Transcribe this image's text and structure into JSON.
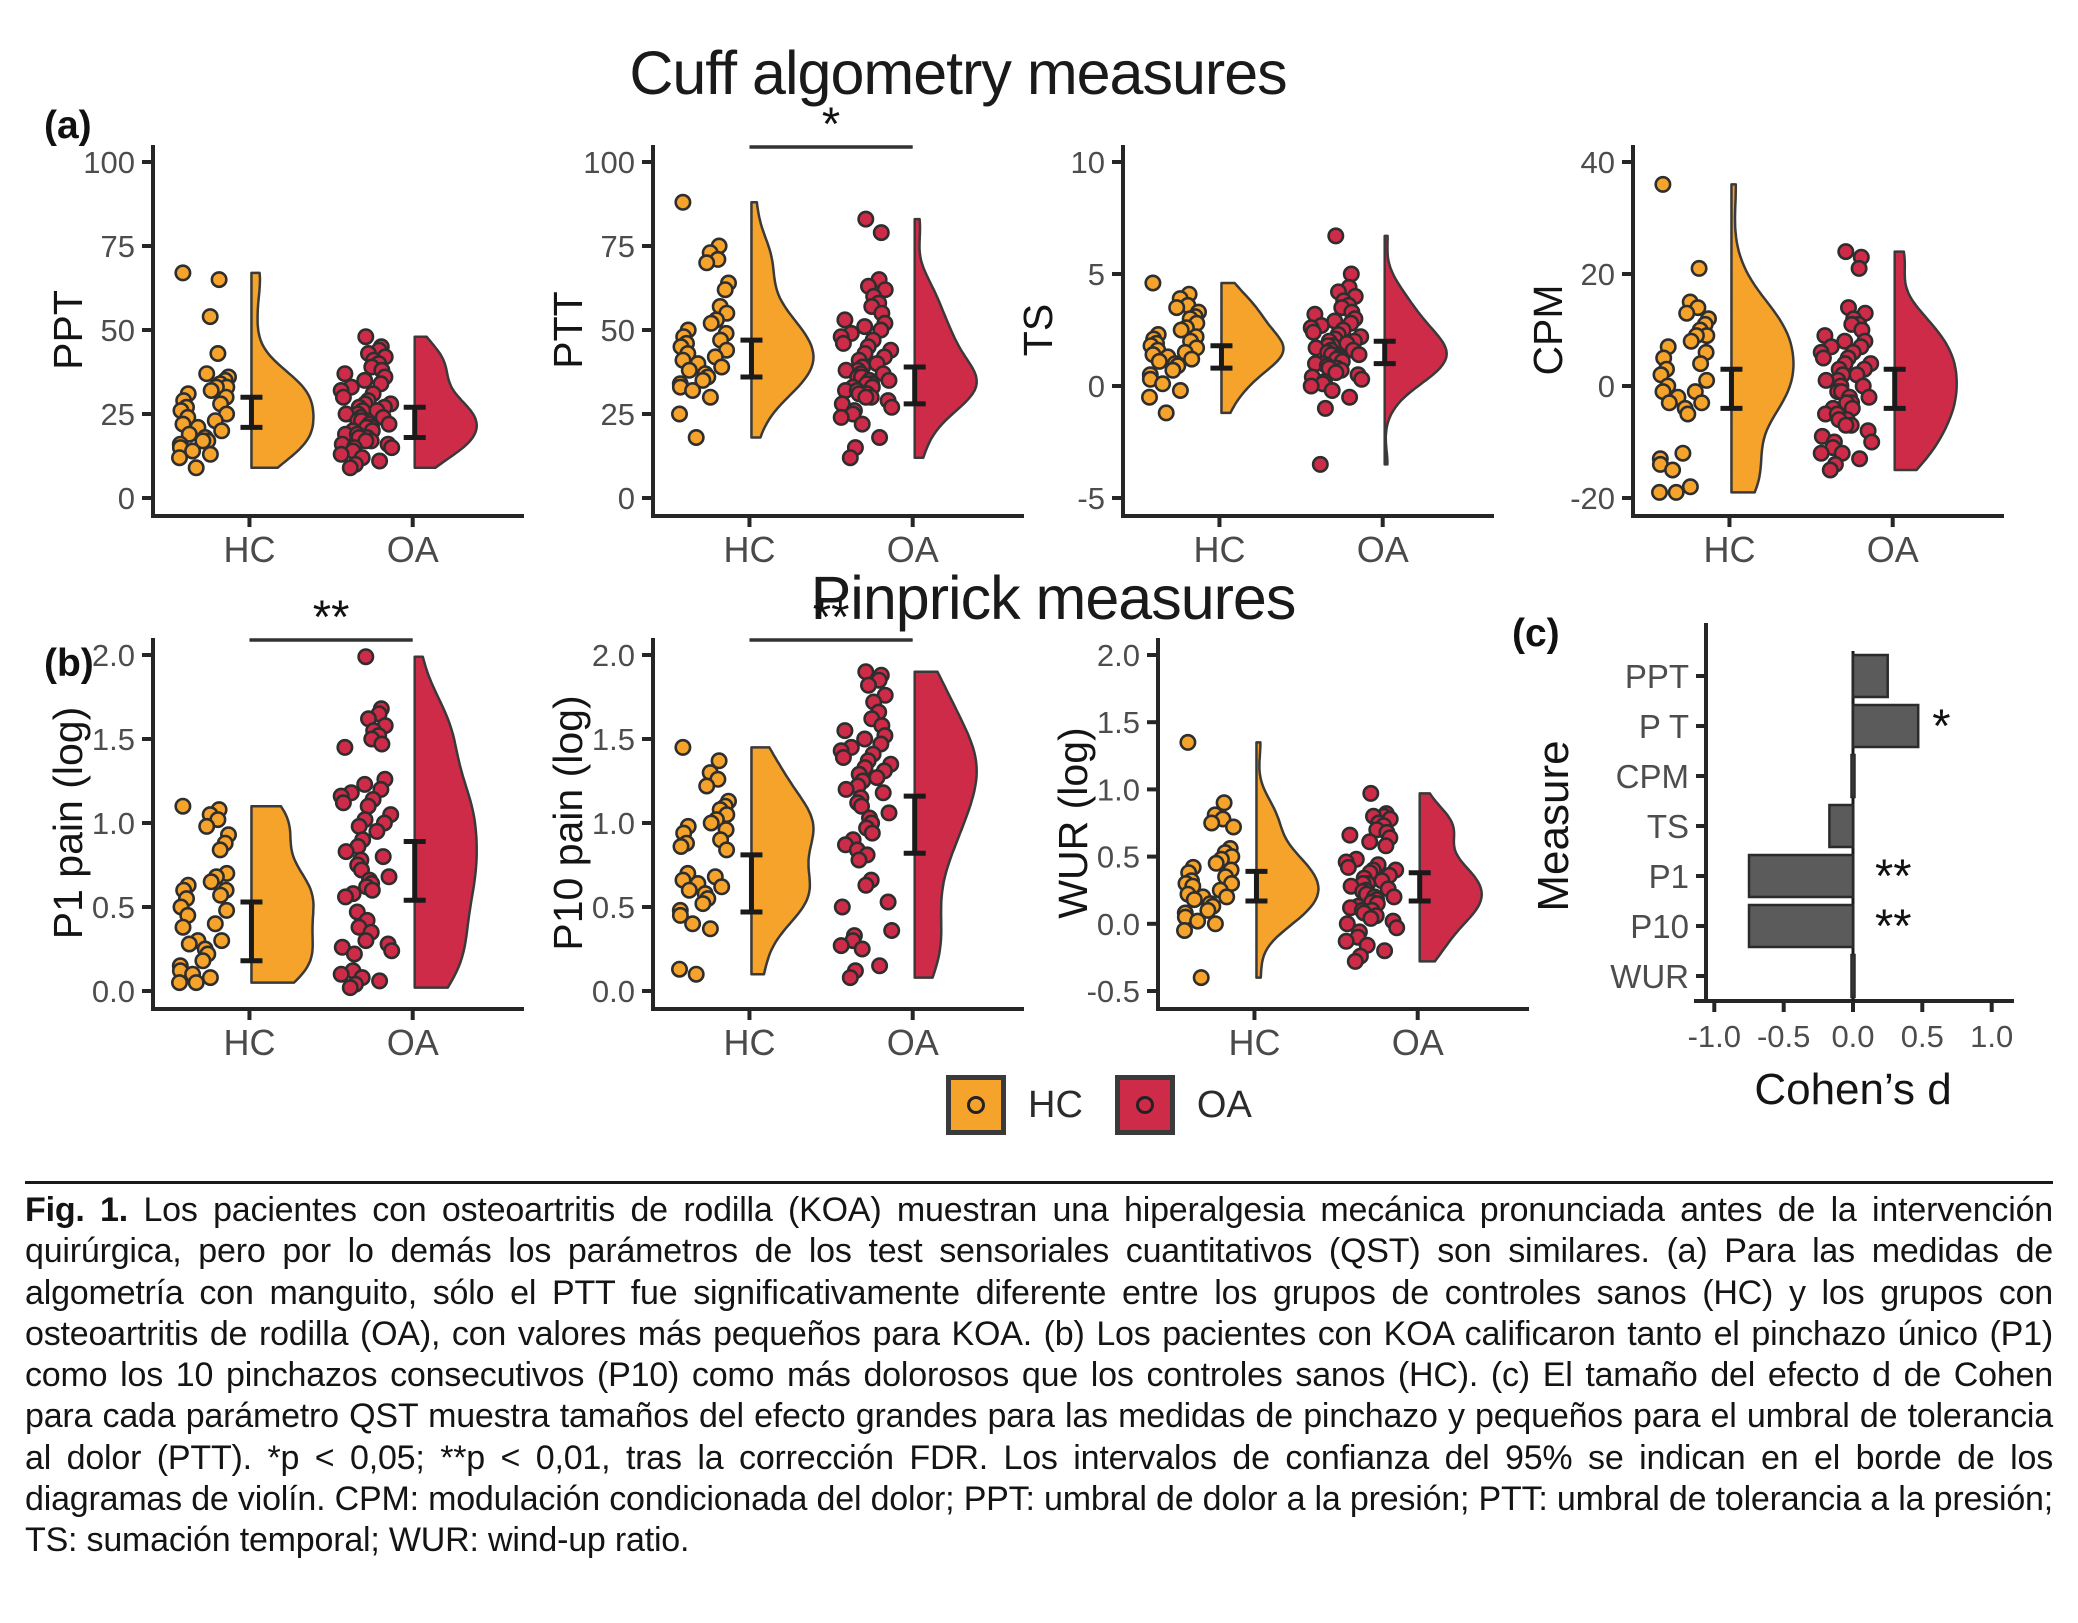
{
  "figure": {
    "title_cuff": "Cuff algometry measures",
    "title_pinprick": "Pinprick measures",
    "panel_labels": {
      "a": "(a)",
      "b": "(b)",
      "c": "(c)"
    },
    "legend": {
      "items": [
        {
          "label": "HC",
          "color_key": "hc"
        },
        {
          "label": "OA",
          "color_key": "oa"
        }
      ]
    }
  },
  "colors": {
    "hc": "#F5A32A",
    "oa": "#CE2B49",
    "bar": "#5B5B5B",
    "bar_stroke": "#2b2b2b",
    "axis": "#262626",
    "tick_text": "#4d4d4d",
    "label_text": "#141414",
    "errorbar": "#1a1a1a",
    "point_stroke": "#2e2e2e",
    "violin_stroke": "#3a3a3a",
    "zero_line": "#1a1a1a"
  },
  "chart_data": [
    {
      "type": "raincloud",
      "id": "ppt",
      "ylabel": "PPT",
      "ylim": [
        0,
        100
      ],
      "yticks": [
        0,
        25,
        50,
        75,
        100
      ],
      "ytick_labels": [
        "0",
        "25",
        "50",
        "75",
        "100"
      ],
      "categories": [
        "HC",
        "OA"
      ],
      "sig": "",
      "series": [
        {
          "name": "HC",
          "color_key": "hc",
          "ci": [
            21,
            30
          ],
          "values": [
            67,
            65,
            54,
            43,
            37,
            36,
            35,
            34,
            33,
            33,
            32,
            31,
            30,
            29,
            28,
            27,
            26,
            25,
            24,
            23,
            22,
            21,
            20,
            19,
            18,
            17,
            17,
            16,
            15,
            14,
            13,
            12,
            9
          ]
        },
        {
          "name": "OA",
          "color_key": "oa",
          "ci": [
            18,
            27
          ],
          "values": [
            48,
            45,
            44,
            43,
            42,
            41,
            40,
            39,
            38,
            37,
            36,
            35,
            34,
            33,
            32,
            31,
            30,
            29,
            28,
            28,
            27,
            27,
            26,
            26,
            25,
            25,
            24,
            24,
            23,
            23,
            22,
            22,
            21,
            21,
            20,
            20,
            19,
            19,
            18,
            18,
            17,
            17,
            16,
            16,
            15,
            15,
            14,
            13,
            12,
            11,
            10,
            9
          ]
        }
      ]
    },
    {
      "type": "raincloud",
      "id": "ptt",
      "ylabel": "PTT",
      "ylim": [
        0,
        100
      ],
      "yticks": [
        0,
        25,
        50,
        75,
        100
      ],
      "ytick_labels": [
        "0",
        "25",
        "50",
        "75",
        "100"
      ],
      "categories": [
        "HC",
        "OA"
      ],
      "sig": "*",
      "series": [
        {
          "name": "HC",
          "color_key": "hc",
          "ci": [
            36,
            47
          ],
          "values": [
            88,
            75,
            73,
            71,
            70,
            64,
            62,
            57,
            55,
            53,
            52,
            50,
            49,
            48,
            47,
            46,
            45,
            44,
            43,
            42,
            41,
            40,
            39,
            38,
            37,
            36,
            35,
            34,
            33,
            32,
            30,
            25,
            18
          ]
        },
        {
          "name": "OA",
          "color_key": "oa",
          "ci": [
            28,
            39
          ],
          "values": [
            83,
            79,
            65,
            63,
            62,
            60,
            58,
            57,
            55,
            53,
            52,
            51,
            50,
            49,
            48,
            47,
            46,
            45,
            44,
            43,
            42,
            41,
            40,
            39,
            38,
            38,
            37,
            37,
            36,
            36,
            35,
            35,
            34,
            34,
            33,
            33,
            32,
            32,
            31,
            31,
            30,
            30,
            29,
            28,
            27,
            26,
            25,
            24,
            22,
            18,
            15,
            12
          ]
        }
      ]
    },
    {
      "type": "raincloud",
      "id": "ts",
      "ylabel": "TS",
      "ylim": [
        -5,
        10
      ],
      "yticks": [
        -5,
        0,
        5,
        10
      ],
      "ytick_labels": [
        "-5",
        "0",
        "5",
        "10"
      ],
      "categories": [
        "HC",
        "OA"
      ],
      "sig": "",
      "series": [
        {
          "name": "HC",
          "color_key": "hc",
          "ci": [
            0.8,
            1.8
          ],
          "values": [
            4.6,
            4.1,
            3.9,
            3.6,
            3.5,
            3.3,
            3.1,
            3.0,
            2.8,
            2.6,
            2.5,
            2.3,
            2.2,
            2.1,
            2.0,
            1.9,
            1.8,
            1.7,
            1.6,
            1.5,
            1.4,
            1.3,
            1.2,
            1.1,
            1.0,
            0.9,
            0.7,
            0.5,
            0.3,
            0.1,
            -0.2,
            -0.5,
            -1.2
          ]
        },
        {
          "name": "OA",
          "color_key": "oa",
          "ci": [
            1.0,
            2.0
          ],
          "values": [
            6.7,
            5.0,
            4.4,
            4.2,
            4.0,
            3.8,
            3.6,
            3.5,
            3.3,
            3.2,
            3.0,
            2.9,
            2.8,
            2.7,
            2.6,
            2.5,
            2.4,
            2.3,
            2.2,
            2.1,
            2.0,
            2.0,
            1.9,
            1.8,
            1.8,
            1.7,
            1.6,
            1.6,
            1.5,
            1.4,
            1.4,
            1.3,
            1.2,
            1.2,
            1.1,
            1.0,
            1.0,
            0.9,
            0.8,
            0.8,
            0.7,
            0.6,
            0.5,
            0.4,
            0.3,
            0.2,
            0.1,
            0.0,
            -0.2,
            -0.5,
            -1.0,
            -3.5
          ]
        }
      ]
    },
    {
      "type": "raincloud",
      "id": "cpm",
      "ylabel": "CPM",
      "ylim": [
        -20,
        40
      ],
      "yticks": [
        -20,
        0,
        20,
        40
      ],
      "ytick_labels": [
        "-20",
        "0",
        "20",
        "40"
      ],
      "categories": [
        "HC",
        "OA"
      ],
      "sig": "",
      "series": [
        {
          "name": "HC",
          "color_key": "hc",
          "ci": [
            -4,
            3
          ],
          "values": [
            36,
            21,
            15,
            14,
            13,
            12,
            11,
            10,
            9,
            9,
            8,
            7,
            6,
            5,
            4,
            3,
            2,
            1,
            0,
            -1,
            -1,
            -2,
            -3,
            -3,
            -4,
            -5,
            -12,
            -13,
            -14,
            -15,
            -18,
            -19,
            -19
          ]
        },
        {
          "name": "OA",
          "color_key": "oa",
          "ci": [
            -4,
            3
          ],
          "values": [
            24,
            23,
            21,
            14,
            13,
            12,
            11,
            11,
            10,
            9,
            8,
            8,
            7,
            7,
            6,
            6,
            5,
            5,
            4,
            4,
            3,
            3,
            2,
            2,
            1,
            1,
            0,
            0,
            -1,
            -1,
            -2,
            -2,
            -3,
            -3,
            -4,
            -4,
            -5,
            -5,
            -6,
            -6,
            -7,
            -7,
            -8,
            -9,
            -10,
            -10,
            -11,
            -12,
            -12,
            -13,
            -14,
            -15
          ]
        }
      ]
    },
    {
      "type": "raincloud",
      "id": "p1",
      "ylabel": "P1 pain (log)",
      "ylim": [
        0,
        2
      ],
      "yticks": [
        0,
        0.5,
        1,
        1.5,
        2
      ],
      "ytick_labels": [
        "0.0",
        "0.5",
        "1.0",
        "1.5",
        "2.0"
      ],
      "categories": [
        "HC",
        "OA"
      ],
      "sig": "**",
      "series": [
        {
          "name": "HC",
          "color_key": "hc",
          "ci": [
            0.18,
            0.53
          ],
          "values": [
            1.1,
            1.08,
            1.05,
            1.02,
            0.98,
            0.93,
            0.88,
            0.84,
            0.7,
            0.68,
            0.65,
            0.63,
            0.6,
            0.6,
            0.57,
            0.55,
            0.5,
            0.48,
            0.45,
            0.4,
            0.38,
            0.3,
            0.3,
            0.28,
            0.25,
            0.22,
            0.18,
            0.15,
            0.12,
            0.1,
            0.08,
            0.05,
            0.05
          ]
        },
        {
          "name": "OA",
          "color_key": "oa",
          "ci": [
            0.54,
            0.89
          ],
          "values": [
            1.99,
            1.68,
            1.65,
            1.62,
            1.58,
            1.55,
            1.52,
            1.5,
            1.47,
            1.45,
            1.26,
            1.23,
            1.2,
            1.18,
            1.16,
            1.14,
            1.12,
            1.1,
            1.05,
            1.02,
            1.0,
            0.98,
            0.95,
            0.9,
            0.86,
            0.83,
            0.8,
            0.78,
            0.75,
            0.72,
            0.68,
            0.66,
            0.64,
            0.62,
            0.6,
            0.58,
            0.56,
            0.47,
            0.42,
            0.38,
            0.35,
            0.3,
            0.28,
            0.26,
            0.24,
            0.22,
            0.12,
            0.1,
            0.08,
            0.06,
            0.04,
            0.02
          ]
        }
      ]
    },
    {
      "type": "raincloud",
      "id": "p10",
      "ylabel": "P10 pain (log)",
      "ylim": [
        0,
        2
      ],
      "yticks": [
        0,
        0.5,
        1,
        1.5,
        2
      ],
      "ytick_labels": [
        "0.0",
        "0.5",
        "1.0",
        "1.5",
        "2.0"
      ],
      "categories": [
        "HC",
        "OA"
      ],
      "sig": "**",
      "series": [
        {
          "name": "HC",
          "color_key": "hc",
          "ci": [
            0.47,
            0.81
          ],
          "values": [
            1.45,
            1.37,
            1.3,
            1.26,
            1.22,
            1.13,
            1.1,
            1.08,
            1.05,
            1.02,
            1.0,
            0.98,
            0.96,
            0.94,
            0.9,
            0.88,
            0.86,
            0.84,
            0.7,
            0.68,
            0.66,
            0.64,
            0.62,
            0.6,
            0.58,
            0.55,
            0.52,
            0.48,
            0.45,
            0.4,
            0.37,
            0.13,
            0.1
          ]
        },
        {
          "name": "OA",
          "color_key": "oa",
          "ci": [
            0.82,
            1.16
          ],
          "values": [
            1.9,
            1.88,
            1.85,
            1.82,
            1.76,
            1.72,
            1.66,
            1.62,
            1.58,
            1.55,
            1.52,
            1.5,
            1.47,
            1.45,
            1.43,
            1.41,
            1.39,
            1.37,
            1.35,
            1.33,
            1.31,
            1.29,
            1.27,
            1.25,
            1.22,
            1.2,
            1.18,
            1.15,
            1.12,
            1.1,
            1.06,
            1.03,
            1.0,
            0.97,
            0.94,
            0.9,
            0.87,
            0.84,
            0.81,
            0.78,
            0.66,
            0.63,
            0.53,
            0.5,
            0.36,
            0.33,
            0.3,
            0.27,
            0.25,
            0.15,
            0.12,
            0.08
          ]
        }
      ]
    },
    {
      "type": "raincloud",
      "id": "wur",
      "ylabel": "WUR (log)",
      "ylim": [
        -0.5,
        2
      ],
      "yticks": [
        -0.5,
        0,
        0.5,
        1,
        1.5,
        2
      ],
      "ytick_labels": [
        "-0.5",
        "0.0",
        "0.5",
        "1.0",
        "1.5",
        "2.0"
      ],
      "categories": [
        "HC",
        "OA"
      ],
      "sig": "",
      "series": [
        {
          "name": "HC",
          "color_key": "hc",
          "ci": [
            0.17,
            0.39
          ],
          "values": [
            1.35,
            0.9,
            0.81,
            0.78,
            0.75,
            0.72,
            0.56,
            0.53,
            0.5,
            0.48,
            0.45,
            0.42,
            0.4,
            0.38,
            0.35,
            0.32,
            0.3,
            0.3,
            0.28,
            0.25,
            0.22,
            0.2,
            0.2,
            0.18,
            0.15,
            0.13,
            0.1,
            0.08,
            0.05,
            0.02,
            0.0,
            -0.05,
            -0.4
          ]
        },
        {
          "name": "OA",
          "color_key": "oa",
          "ci": [
            0.17,
            0.38
          ],
          "values": [
            0.97,
            0.82,
            0.8,
            0.8,
            0.78,
            0.75,
            0.73,
            0.7,
            0.68,
            0.66,
            0.64,
            0.61,
            0.58,
            0.48,
            0.46,
            0.44,
            0.42,
            0.4,
            0.4,
            0.38,
            0.36,
            0.34,
            0.32,
            0.3,
            0.3,
            0.28,
            0.26,
            0.25,
            0.24,
            0.22,
            0.2,
            0.2,
            0.18,
            0.16,
            0.15,
            0.13,
            0.12,
            0.1,
            0.1,
            0.08,
            0.06,
            0.04,
            0.02,
            0.0,
            -0.03,
            -0.06,
            -0.1,
            -0.13,
            -0.16,
            -0.2,
            -0.24,
            -0.28
          ]
        }
      ]
    },
    {
      "type": "bar",
      "id": "cohens_d",
      "orientation": "horizontal",
      "xlabel": "Cohen’s d",
      "ylabel": "Measure",
      "categories": [
        "PPT",
        "P T",
        "CPM",
        "TS",
        "P1",
        "P10",
        "WUR"
      ],
      "values": [
        0.25,
        0.47,
        0.01,
        -0.17,
        -0.75,
        -0.75,
        -0.02
      ],
      "sig": [
        "",
        "*",
        "",
        "",
        "**",
        "**",
        ""
      ],
      "xticks": [
        -1.0,
        -0.5,
        0.0,
        0.5,
        1.0
      ],
      "xtick_labels": [
        "-1.0",
        "-0.5",
        "0.0",
        "0.5",
        "1.0"
      ],
      "xlim": [
        -1.06,
        1.06
      ]
    }
  ],
  "caption": {
    "prefix": "Fig. 1.",
    "body": "Los pacientes con osteoartritis de rodilla (KOA) muestran una hiperalgesia mecánica pronunciada antes de la intervención quirúrgica, pero por lo demás los parámetros de los test sensoriales cuantitativos (QST) son similares. (a) Para las medidas de algometría con manguito, sólo el PTT fue significativamente diferente entre los grupos de controles sanos (HC) y los grupos con osteoartritis de rodilla (OA), con valores más pequeños para KOA. (b) Los pacientes con KOA calificaron tanto el pinchazo único (P1) como los 10 pinchazos consecutivos (P10) como más dolorosos que los controles sanos (HC). (c) El tamaño del efecto d de Cohen para cada parámetro QST muestra tamaños del efecto grandes para las medidas de pinchazo y pequeños para el umbral de tolerancia al dolor (PTT). *p < 0,05; **p < 0,01, tras la corrección FDR. Los intervalos de confianza del 95% se indican en el borde de los diagramas de violín. CPM: modulación condicionada del dolor; PPT: umbral de dolor a la presión; PTT: umbral de tolerancia a la presión; TS: sumación temporal; WUR: wind-up ratio."
  }
}
